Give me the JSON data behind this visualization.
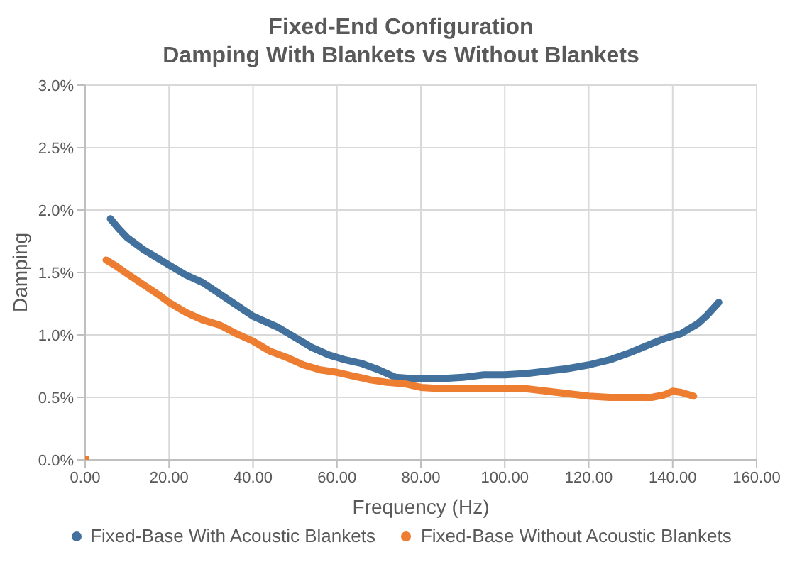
{
  "chart_data": {
    "type": "line",
    "title": "Fixed-End Configuration",
    "subtitle": "Damping With Blankets vs Without Blankets",
    "xlabel": "Frequency (Hz)",
    "ylabel": "Damping",
    "xlim": [
      0,
      160
    ],
    "xticks": [
      {
        "value": 0,
        "label": "0.00"
      },
      {
        "value": 20,
        "label": "20.00"
      },
      {
        "value": 40,
        "label": "40.00"
      },
      {
        "value": 60,
        "label": "60.00"
      },
      {
        "value": 80,
        "label": "80.00"
      },
      {
        "value": 100,
        "label": "100.00"
      },
      {
        "value": 120,
        "label": "120.00"
      },
      {
        "value": 140,
        "label": "140.00"
      },
      {
        "value": 160,
        "label": "160.00"
      }
    ],
    "ylim": [
      0,
      3
    ],
    "yticks": [
      {
        "value": 0,
        "label": "0.0%"
      },
      {
        "value": 0.5,
        "label": "0.5%"
      },
      {
        "value": 1,
        "label": "1.0%"
      },
      {
        "value": 1.5,
        "label": "1.5%"
      },
      {
        "value": 2,
        "label": "2.0%"
      },
      {
        "value": 2.5,
        "label": "2.5%"
      },
      {
        "value": 3,
        "label": "3.0%"
      }
    ],
    "grid": true,
    "legend": "bottom",
    "marker": "none",
    "line_style": "solid",
    "series": [
      {
        "name": "Fixed-Base With Acoustic Blankets",
        "color": "#41719c",
        "x": [
          6,
          8,
          10,
          14,
          18,
          20,
          24,
          28,
          32,
          36,
          40,
          44,
          46,
          50,
          54,
          58,
          62,
          66,
          70,
          74,
          78,
          85,
          90,
          95,
          100,
          105,
          110,
          115,
          120,
          125,
          130,
          135,
          138,
          142,
          146,
          148,
          151
        ],
        "values": [
          1.93,
          1.85,
          1.78,
          1.68,
          1.6,
          1.56,
          1.48,
          1.42,
          1.33,
          1.24,
          1.15,
          1.09,
          1.06,
          0.98,
          0.9,
          0.84,
          0.8,
          0.77,
          0.72,
          0.66,
          0.65,
          0.65,
          0.66,
          0.68,
          0.68,
          0.69,
          0.71,
          0.73,
          0.76,
          0.8,
          0.86,
          0.93,
          0.97,
          1.01,
          1.09,
          1.15,
          1.26
        ]
      },
      {
        "name": "Fixed-Base Without Acoustic Blankets",
        "color": "#ed7d31",
        "x": [
          5,
          7,
          10,
          14,
          18,
          20,
          24,
          28,
          32,
          36,
          40,
          44,
          48,
          52,
          56,
          60,
          64,
          68,
          72,
          76,
          80,
          85,
          90,
          95,
          100,
          105,
          110,
          115,
          120,
          125,
          130,
          135,
          138,
          140,
          142,
          145
        ],
        "values": [
          1.6,
          1.56,
          1.49,
          1.4,
          1.31,
          1.26,
          1.18,
          1.12,
          1.08,
          1.01,
          0.95,
          0.87,
          0.82,
          0.76,
          0.72,
          0.7,
          0.67,
          0.64,
          0.62,
          0.61,
          0.58,
          0.57,
          0.57,
          0.57,
          0.57,
          0.57,
          0.55,
          0.53,
          0.51,
          0.5,
          0.5,
          0.5,
          0.52,
          0.55,
          0.54,
          0.51
        ]
      },
      {
        "type": "scatter",
        "marker": "square",
        "color": "#ed7d31",
        "x": [
          0
        ],
        "values": [
          0
        ]
      }
    ]
  }
}
